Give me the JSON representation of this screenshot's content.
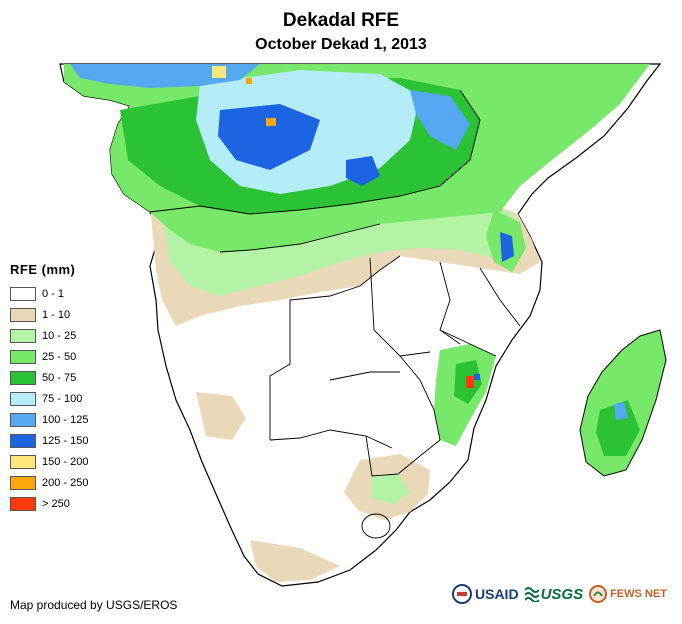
{
  "title": "Dekadal RFE",
  "subtitle": "October Dekad 1, 2013",
  "legend": {
    "title": "RFE (mm)",
    "items": [
      {
        "label": "0 - 1",
        "color": "#ffffff"
      },
      {
        "label": "1 - 10",
        "color": "#ead9b8"
      },
      {
        "label": "10 - 25",
        "color": "#b4f2a4"
      },
      {
        "label": "25 - 50",
        "color": "#78e86a"
      },
      {
        "label": "50 - 75",
        "color": "#2cc236"
      },
      {
        "label": "75 - 100",
        "color": "#b4ecf7"
      },
      {
        "label": "100 - 125",
        "color": "#55a8f2"
      },
      {
        "label": "125 - 150",
        "color": "#1c64e2"
      },
      {
        "label": "150 - 200",
        "color": "#fde67a"
      },
      {
        "label": "200 - 250",
        "color": "#ffa50e"
      },
      {
        "label": "> 250",
        "color": "#ff3a0a"
      }
    ]
  },
  "credit": "Map produced by USGS/EROS",
  "logos": {
    "usaid": "USAID",
    "usgs": "USGS",
    "fews": "FEWS NET"
  }
}
